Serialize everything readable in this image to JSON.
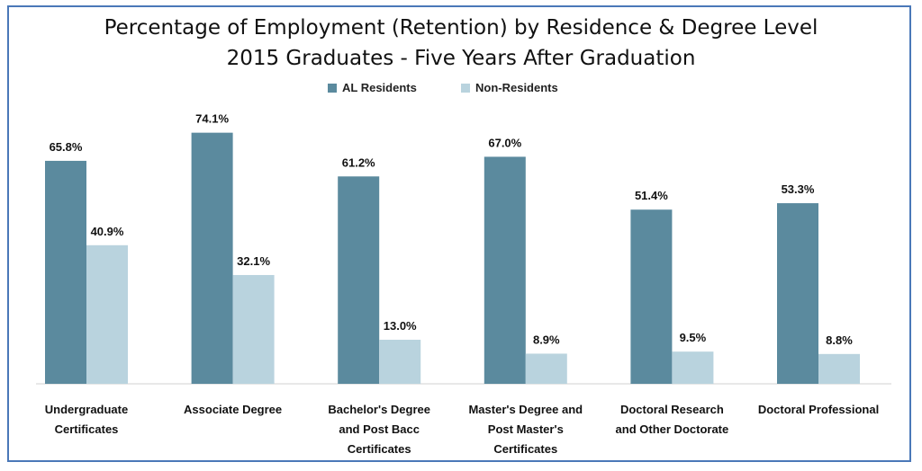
{
  "chart_data": {
    "type": "bar",
    "title": "Percentage of Employment (Retention) by Residence & Degree Level",
    "subtitle": "2015 Graduates - Five Years After Graduation",
    "categories": [
      [
        "Undergraduate",
        "Certificates"
      ],
      [
        "Associate Degree"
      ],
      [
        "Bachelor's Degree",
        "and Post Bacc",
        "Certificates"
      ],
      [
        "Master's Degree and",
        "Post Master's",
        "Certificates"
      ],
      [
        "Doctoral Research",
        "and Other Doctorate"
      ],
      [
        "Doctoral Professional"
      ]
    ],
    "series": [
      {
        "name": "AL Residents",
        "color": "#5b8a9e",
        "values": [
          65.8,
          74.1,
          61.2,
          67.0,
          51.4,
          53.3
        ],
        "labels": [
          "65.8%",
          "74.1%",
          "61.2%",
          "67.0%",
          "51.4%",
          "53.3%"
        ]
      },
      {
        "name": "Non-Residents",
        "color": "#b9d3de",
        "values": [
          40.9,
          32.1,
          13.0,
          8.9,
          9.5,
          8.8
        ],
        "labels": [
          "40.9%",
          "32.1%",
          "13.0%",
          "8.9%",
          "9.5%",
          "8.8%"
        ]
      }
    ],
    "ylim": [
      0,
      100
    ],
    "grid": false,
    "legend": "top-center"
  }
}
